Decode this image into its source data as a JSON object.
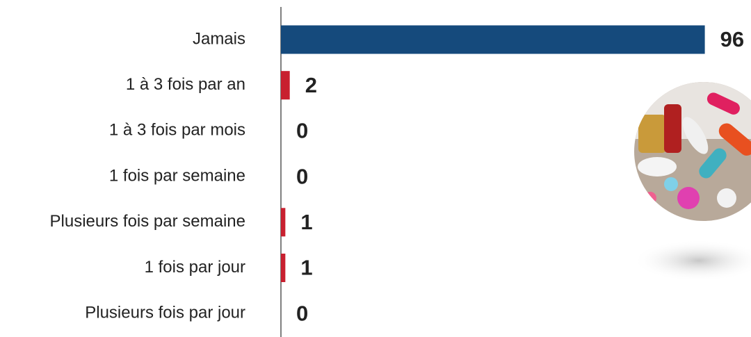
{
  "chart_data": {
    "type": "barh",
    "categories": [
      "Jamais",
      "1 à 3 fois par an",
      "1 à 3 fois par mois",
      "1 fois par semaine",
      "Plusieurs fois par semaine",
      "1 fois par jour",
      "Plusieurs fois par jour"
    ],
    "values": [
      96,
      2,
      0,
      0,
      1,
      1,
      0
    ],
    "colors": [
      "#154a7c",
      "#c8202f",
      "#c8202f",
      "#c8202f",
      "#c8202f",
      "#c8202f",
      "#c8202f"
    ],
    "xlim": [
      0,
      100
    ]
  }
}
